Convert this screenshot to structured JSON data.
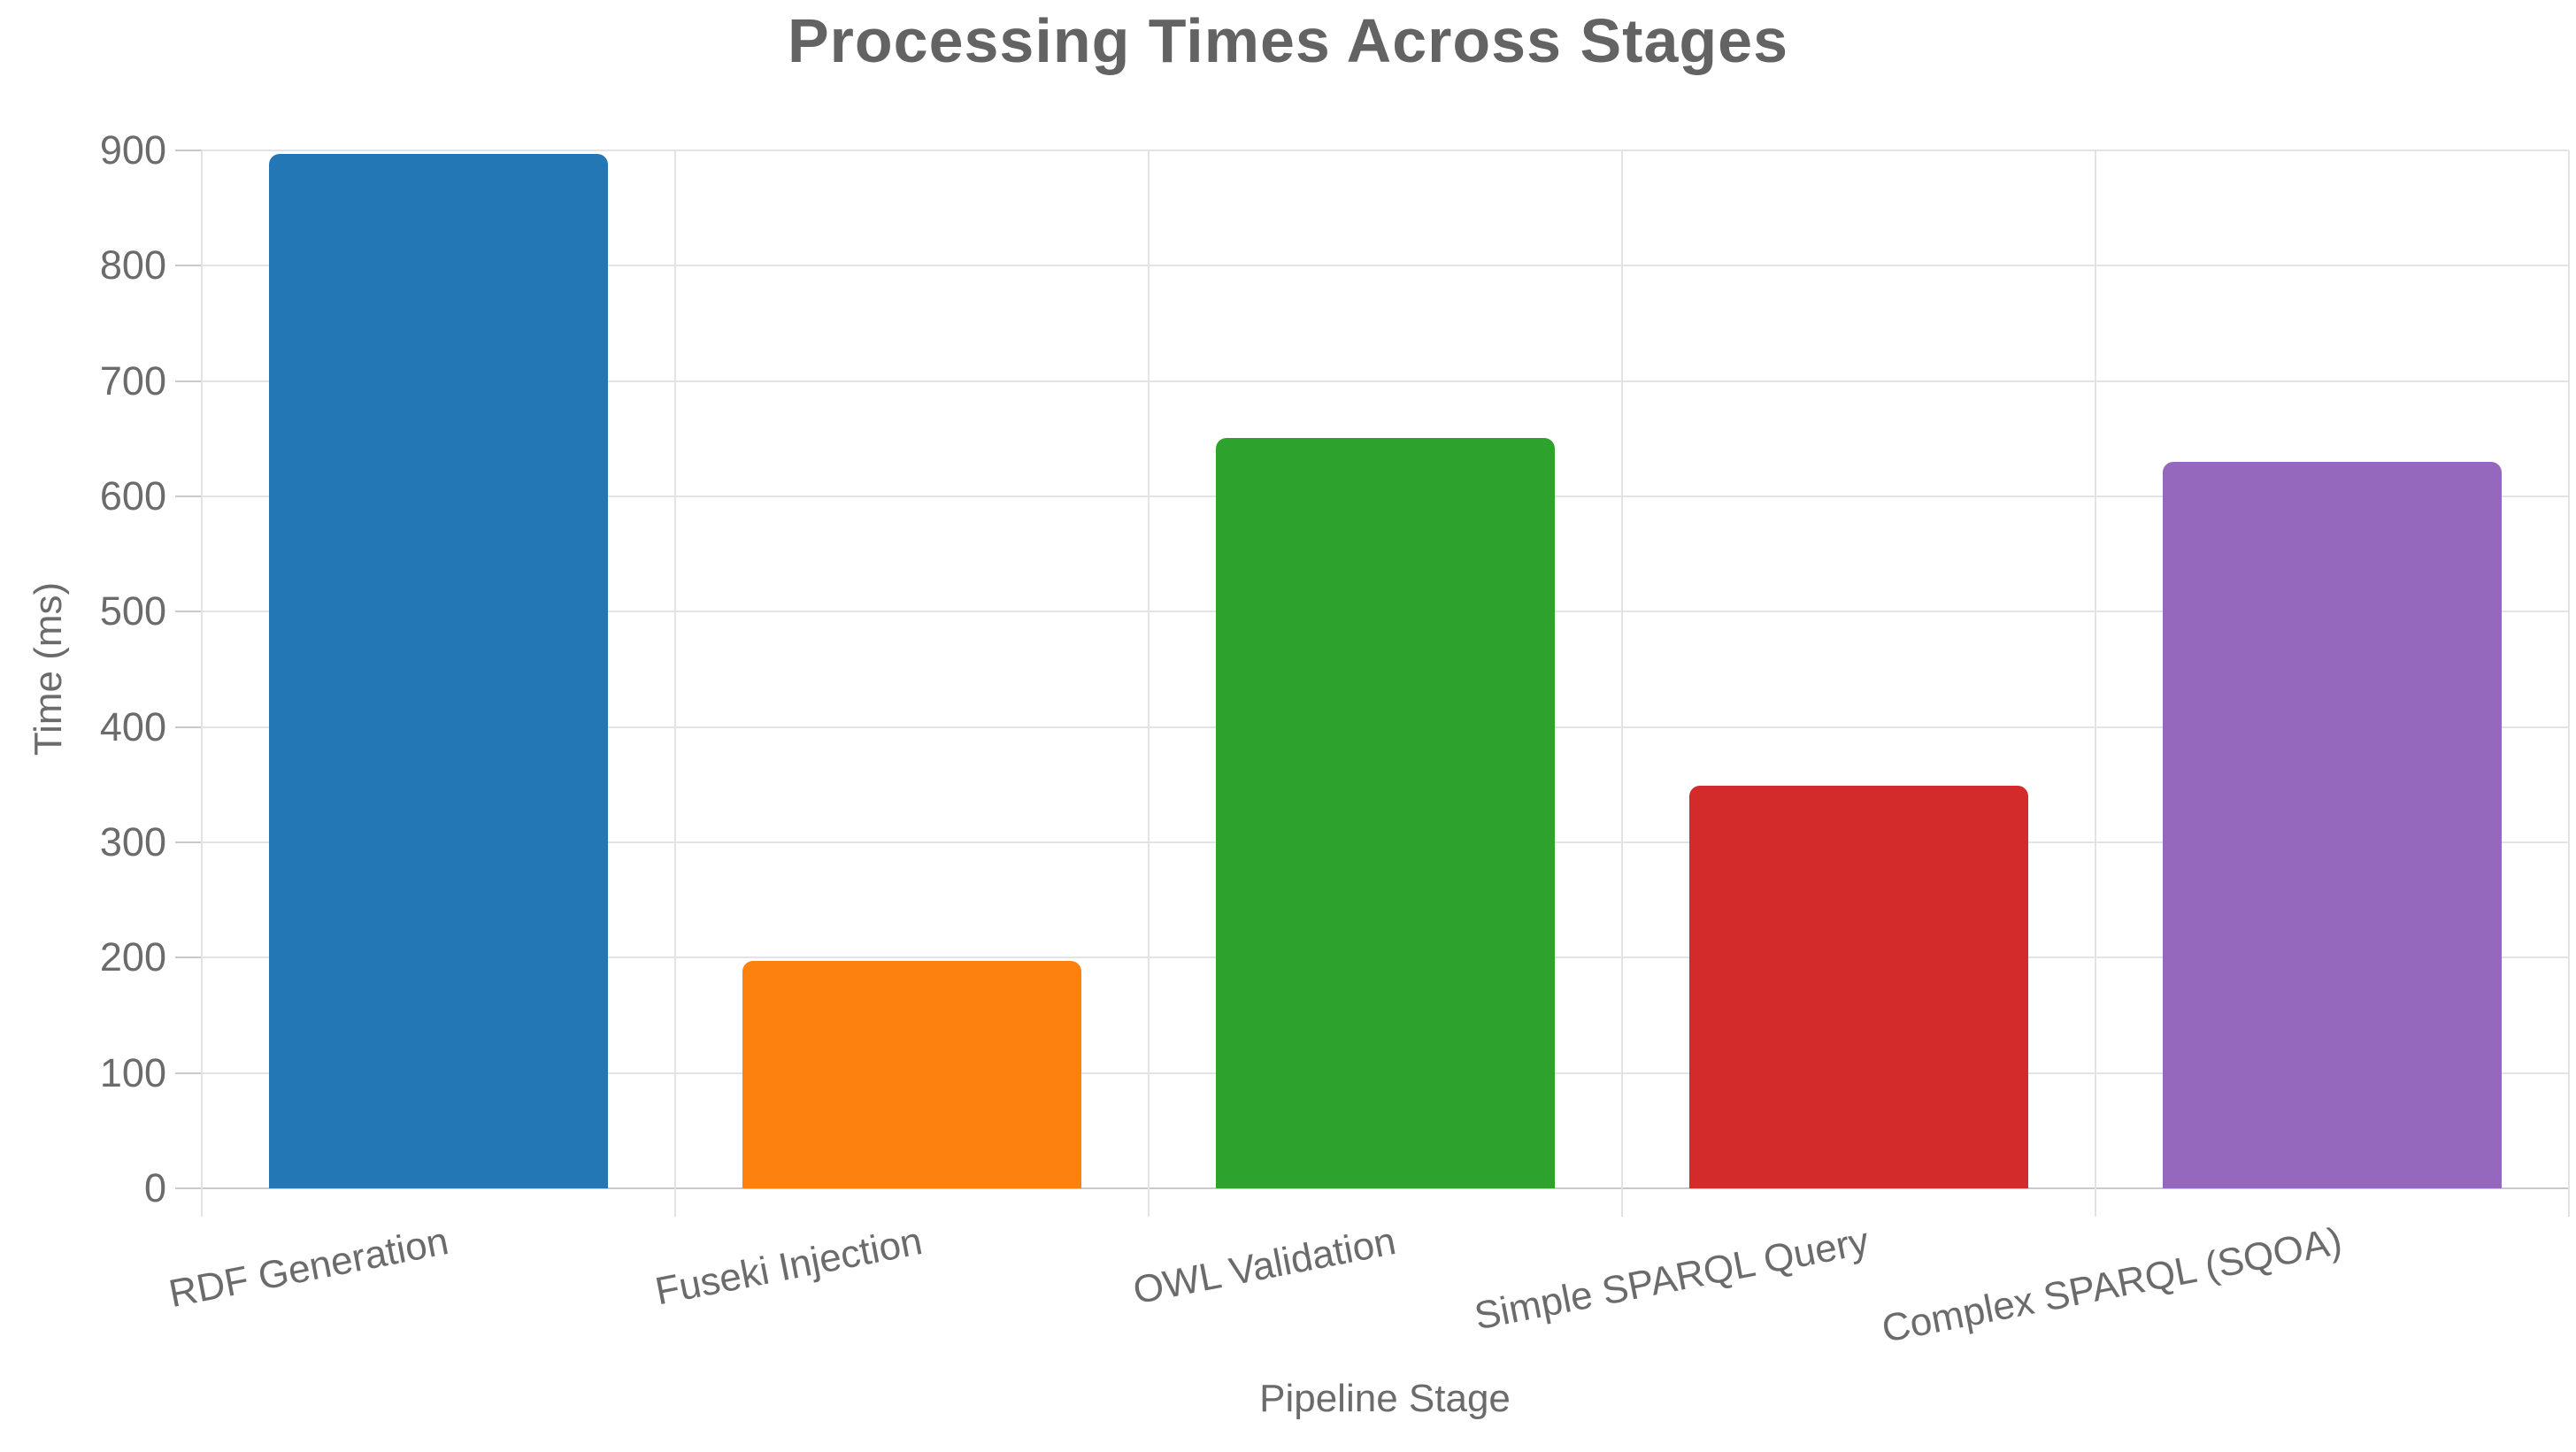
{
  "chart_data": {
    "type": "bar",
    "title": "Processing Times Across Stages",
    "xlabel": "Pipeline Stage",
    "ylabel": "Time (ms)",
    "categories": [
      "RDF Generation",
      "Fuseki Injection",
      "OWL Validation",
      "Simple SPARQL Query",
      "Complex SPARQL (SQOA)"
    ],
    "values": [
      897,
      197,
      651,
      349,
      630
    ],
    "bar_colors": [
      "#2277b4",
      "#fd810e",
      "#2da32d",
      "#d32b2b",
      "#9568bd"
    ],
    "ylim": [
      0,
      900
    ],
    "yticks": [
      0,
      100,
      200,
      300,
      400,
      500,
      600,
      700,
      800,
      900
    ],
    "grid": true,
    "legend": false,
    "x_tick_rotation_deg": -11,
    "title_color": "#636363",
    "axis_text_color": "#6b6b6b",
    "grid_color": "#e3e3e3",
    "axis_line_color": "#c9c9c9"
  }
}
